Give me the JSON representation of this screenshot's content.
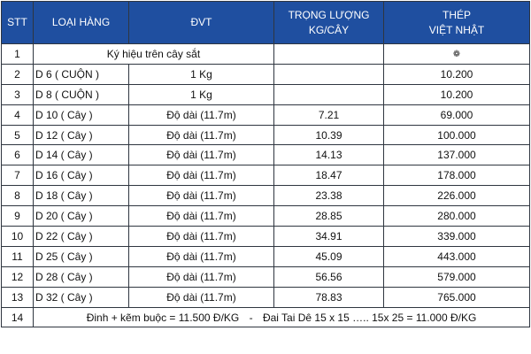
{
  "table": {
    "headers": {
      "stt": "STT",
      "loai_hang": "LOẠI HÀNG",
      "dvt": "ĐVT",
      "trong_luong": [
        "TRỌNG LƯỢNG",
        "KG/CÂY"
      ],
      "thep": [
        "THÉP",
        "VIỆT NHẬT"
      ]
    },
    "mark_row": {
      "stt": "1",
      "label": "Ký hiệu trên cây sắt",
      "weight": "",
      "mark_icon": "flower-mark-icon",
      "mark_glyph": "❁"
    },
    "rows": [
      {
        "stt": "2",
        "name": "D 6 ( CUỘN )",
        "unit": "1 Kg",
        "weight": "",
        "price": "10.200"
      },
      {
        "stt": "3",
        "name": "D 8 ( CUỘN )",
        "unit": "1 Kg",
        "weight": "",
        "price": "10.200"
      },
      {
        "stt": "4",
        "name": "D 10  ( Cây )",
        "unit": "Độ dài  (11.7m)",
        "weight": "7.21",
        "price": "69.000"
      },
      {
        "stt": "5",
        "name": "D 12  ( Cây )",
        "unit": "Độ dài  (11.7m)",
        "weight": "10.39",
        "price": "100.000"
      },
      {
        "stt": "6",
        "name": "D 14  ( Cây )",
        "unit": "Độ dài  (11.7m)",
        "weight": "14.13",
        "price": "137.000"
      },
      {
        "stt": "7",
        "name": "D 16  ( Cây )",
        "unit": "Độ dài  (11.7m)",
        "weight": "18.47",
        "price": "178.000"
      },
      {
        "stt": "8",
        "name": "D 18  ( Cây )",
        "unit": "Độ dài  (11.7m)",
        "weight": "23.38",
        "price": "226.000"
      },
      {
        "stt": "9",
        "name": "D 20  ( Cây )",
        "unit": "Độ dài  (11.7m)",
        "weight": "28.85",
        "price": "280.000"
      },
      {
        "stt": "10",
        "name": "D 22  ( Cây )",
        "unit": "Độ dài  (11.7m)",
        "weight": "34.91",
        "price": "339.000"
      },
      {
        "stt": "11",
        "name": "D 25  ( Cây )",
        "unit": "Độ dài  (11.7m)",
        "weight": "45.09",
        "price": "443.000"
      },
      {
        "stt": "12",
        "name": "D 28  ( Cây )",
        "unit": "Độ dài  (11.7m)",
        "weight": "56.56",
        "price": "579.000"
      },
      {
        "stt": "13",
        "name": "D 32  ( Cây )",
        "unit": "Độ dài  (11.7m)",
        "weight": "78.83",
        "price": "765.000"
      }
    ],
    "note_row": {
      "stt": "14",
      "left": "Đinh  +  kẽm buộc   =   11.500 Đ/KG",
      "separator": "-",
      "right": "Đai Tai Dê   15 x 15 ….. 15x 25 = 11.000 Đ/KG"
    }
  },
  "colors": {
    "header_bg": "#1f4fa0",
    "header_text": "#ffffff",
    "border": "#2f3640"
  }
}
